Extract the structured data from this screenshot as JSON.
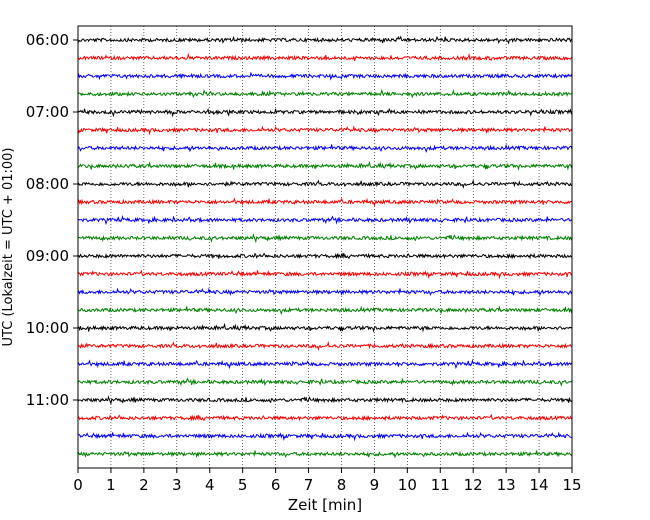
{
  "chart_data": {
    "type": "line",
    "title": "",
    "xlabel": "Zeit  [min]",
    "ylabel": "UTC (Lokalzeit = UTC + 01:00)",
    "xlim": [
      0,
      15
    ],
    "x_ticks": [
      "0",
      "1",
      "2",
      "3",
      "4",
      "5",
      "6",
      "7",
      "8",
      "9",
      "10",
      "11",
      "12",
      "13",
      "14",
      "15"
    ],
    "y_tick_labels": [
      "06:00",
      "07:00",
      "08:00",
      "09:00",
      "10:00",
      "11:00"
    ],
    "grid": "vertical dotted lines at each minute",
    "trace_interval_min": 15,
    "first_trace": "06:00",
    "last_trace": "11:45",
    "trace_colors": [
      "#000000",
      "#ff0000",
      "#0000ff",
      "#008000"
    ],
    "trace_count": 24
  }
}
